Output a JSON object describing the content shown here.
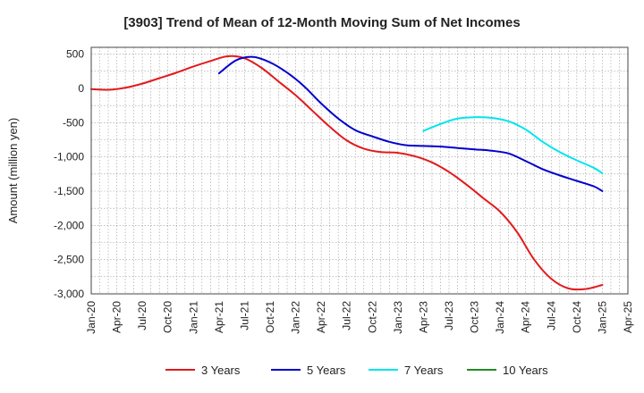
{
  "chart_data": {
    "type": "line",
    "title": "[3903]  Trend of Mean of 12-Month Moving Sum of Net Incomes",
    "ylabel": "Amount (million yen)",
    "xlabel": "",
    "x_ticks": [
      "Jan-20",
      "Apr-20",
      "Jul-20",
      "Oct-20",
      "Jan-21",
      "Apr-21",
      "Jul-21",
      "Oct-21",
      "Jan-22",
      "Apr-22",
      "Jul-22",
      "Oct-22",
      "Jan-23",
      "Apr-23",
      "Jul-23",
      "Oct-23",
      "Jan-24",
      "Apr-24",
      "Jul-24",
      "Oct-24",
      "Jan-25",
      "Apr-25"
    ],
    "y_ticks": [
      "500",
      "0",
      "-500",
      "-1,000",
      "-1,500",
      "-2,000",
      "-2,500",
      "-3,000"
    ],
    "y_tick_values": [
      500,
      0,
      -500,
      -1000,
      -1500,
      -2000,
      -2500,
      -3000
    ],
    "ylim": [
      -3000,
      600
    ],
    "grid": true,
    "legend_position": "bottom",
    "series": [
      {
        "name": "3 Years",
        "color": "#e31a1c",
        "points": [
          [
            "Jan-20",
            -10
          ],
          [
            "Mar-20",
            -20
          ],
          [
            "May-20",
            10
          ],
          [
            "Jul-20",
            70
          ],
          [
            "Sep-20",
            150
          ],
          [
            "Nov-20",
            230
          ],
          [
            "Jan-21",
            320
          ],
          [
            "Mar-21",
            400
          ],
          [
            "May-21",
            470
          ],
          [
            "Jul-21",
            440
          ],
          [
            "Sep-21",
            300
          ],
          [
            "Nov-21",
            100
          ],
          [
            "Jan-22",
            -100
          ],
          [
            "Mar-22",
            -330
          ],
          [
            "May-22",
            -560
          ],
          [
            "Jul-22",
            -760
          ],
          [
            "Sep-22",
            -880
          ],
          [
            "Nov-22",
            -930
          ],
          [
            "Jan-23",
            -940
          ],
          [
            "Mar-23",
            -990
          ],
          [
            "May-23",
            -1080
          ],
          [
            "Jul-23",
            -1220
          ],
          [
            "Sep-23",
            -1400
          ],
          [
            "Nov-23",
            -1600
          ],
          [
            "Jan-24",
            -1800
          ],
          [
            "Mar-24",
            -2100
          ],
          [
            "May-24",
            -2500
          ],
          [
            "Jul-24",
            -2780
          ],
          [
            "Sep-24",
            -2920
          ],
          [
            "Nov-24",
            -2930
          ],
          [
            "Jan-25",
            -2870
          ]
        ]
      },
      {
        "name": "5 Years",
        "color": "#0000cc",
        "points": [
          [
            "Apr-21",
            220
          ],
          [
            "Jun-21",
            410
          ],
          [
            "Aug-21",
            460
          ],
          [
            "Oct-21",
            380
          ],
          [
            "Dec-21",
            230
          ],
          [
            "Feb-22",
            30
          ],
          [
            "Apr-22",
            -220
          ],
          [
            "Jun-22",
            -440
          ],
          [
            "Aug-22",
            -610
          ],
          [
            "Oct-22",
            -700
          ],
          [
            "Dec-22",
            -780
          ],
          [
            "Feb-23",
            -830
          ],
          [
            "Apr-23",
            -840
          ],
          [
            "Jun-23",
            -850
          ],
          [
            "Aug-23",
            -870
          ],
          [
            "Oct-23",
            -890
          ],
          [
            "Dec-23",
            -910
          ],
          [
            "Feb-24",
            -950
          ],
          [
            "Apr-24",
            -1060
          ],
          [
            "Jun-24",
            -1180
          ],
          [
            "Aug-24",
            -1270
          ],
          [
            "Oct-24",
            -1350
          ],
          [
            "Dec-24",
            -1430
          ],
          [
            "Jan-25",
            -1500
          ]
        ]
      },
      {
        "name": "7 Years",
        "color": "#00e5ee",
        "points": [
          [
            "Apr-23",
            -620
          ],
          [
            "Jun-23",
            -520
          ],
          [
            "Aug-23",
            -440
          ],
          [
            "Oct-23",
            -420
          ],
          [
            "Dec-23",
            -430
          ],
          [
            "Feb-24",
            -480
          ],
          [
            "Apr-24",
            -600
          ],
          [
            "Jun-24",
            -780
          ],
          [
            "Aug-24",
            -930
          ],
          [
            "Oct-24",
            -1050
          ],
          [
            "Dec-24",
            -1160
          ],
          [
            "Jan-25",
            -1240
          ]
        ]
      },
      {
        "name": "10 Years",
        "color": "#228b22",
        "points": []
      }
    ]
  }
}
